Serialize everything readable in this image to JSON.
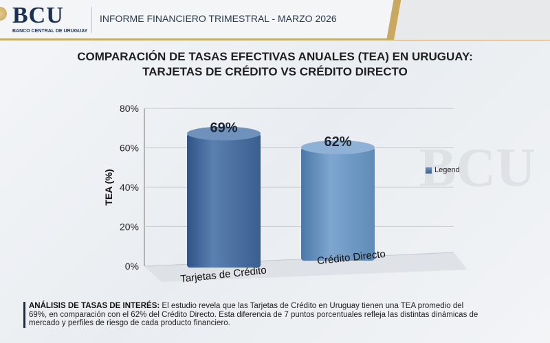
{
  "header": {
    "logo_text": "BCU",
    "logo_subtitle": "BANCO CENTRAL DE URUGUAY",
    "report_title": "INFORME FINANCIERO TRIMESTRAL - MARZO 2026"
  },
  "watermark": "BCU",
  "analysis": {
    "label": "ANÁLISIS DE TASAS DE INTERÉS:",
    "text": " El estudio revela que las Tarjetas de Crédito en Uruguay tienen una TEA promedio del 69%, en comparación con el 62% del Crédito Directo. Esta diferencia de 7 puntos porcentuales refleja las distintas dinámicas de mercado y perfiles de riesgo de cada producto financiero."
  },
  "colors": {
    "bar_top": "#7a9cc4",
    "bar_front": "#3d6290",
    "bar_side": "#2b4a72"
  },
  "chart_data": {
    "type": "bar",
    "title": "COMPARACIÓN DE TASAS EFECTIVAS ANUALES (TEA) EN URUGUAY:",
    "subtitle": "TARJETAS DE CRÉDITO VS CRÉDITO DIRECTO",
    "categories": [
      "Tarjetas de Crédito",
      "Crédito Directo"
    ],
    "values": [
      69,
      62
    ],
    "data_labels": [
      "69%",
      "62%"
    ],
    "ylabel": "TEA (%)",
    "xlabel": "",
    "ylim": [
      0,
      80
    ],
    "yticks": [
      "0%",
      "20%",
      "40%",
      "60%",
      "80%"
    ],
    "ytick_values": [
      0,
      20,
      40,
      60,
      80
    ],
    "legend": {
      "label": "Legend",
      "position": "right"
    },
    "grid": true
  }
}
